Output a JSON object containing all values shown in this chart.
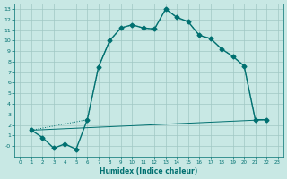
{
  "xlabel": "Humidex (Indice chaleur)",
  "bg_color": "#c8e8e4",
  "line_color": "#007070",
  "grid_color": "#a0c8c4",
  "xlim": [
    -0.5,
    23.5
  ],
  "ylim": [
    -1,
    13.5
  ],
  "xticks": [
    0,
    1,
    2,
    3,
    4,
    5,
    6,
    7,
    8,
    9,
    10,
    11,
    12,
    13,
    14,
    15,
    16,
    17,
    18,
    19,
    20,
    21,
    22,
    23
  ],
  "yticks": [
    0,
    1,
    2,
    3,
    4,
    5,
    6,
    7,
    8,
    9,
    10,
    11,
    12,
    13
  ],
  "curve1_x": [
    1,
    2,
    3,
    4,
    5,
    6,
    7,
    8,
    9,
    10,
    11,
    12,
    13,
    14,
    15,
    16,
    17,
    18,
    19,
    20,
    21,
    22
  ],
  "curve1_y": [
    1.5,
    0.8,
    -0.2,
    0.2,
    -0.3,
    2.5,
    7.5,
    10.0,
    11.2,
    11.5,
    11.2,
    11.1,
    13.0,
    12.2,
    11.8,
    10.5,
    10.2,
    9.2,
    8.5,
    7.6,
    2.5,
    2.5
  ],
  "curve2_x": [
    1,
    6,
    7,
    8,
    9,
    10,
    11,
    12,
    13,
    14,
    15,
    16,
    17,
    18,
    19,
    20,
    21,
    22
  ],
  "curve2_y": [
    1.5,
    2.5,
    7.5,
    10.0,
    11.2,
    11.5,
    11.2,
    11.1,
    13.0,
    12.2,
    11.8,
    10.5,
    10.2,
    9.2,
    8.5,
    7.6,
    2.5,
    2.5
  ],
  "line3_x": [
    1,
    22
  ],
  "line3_y": [
    1.5,
    2.5
  ]
}
